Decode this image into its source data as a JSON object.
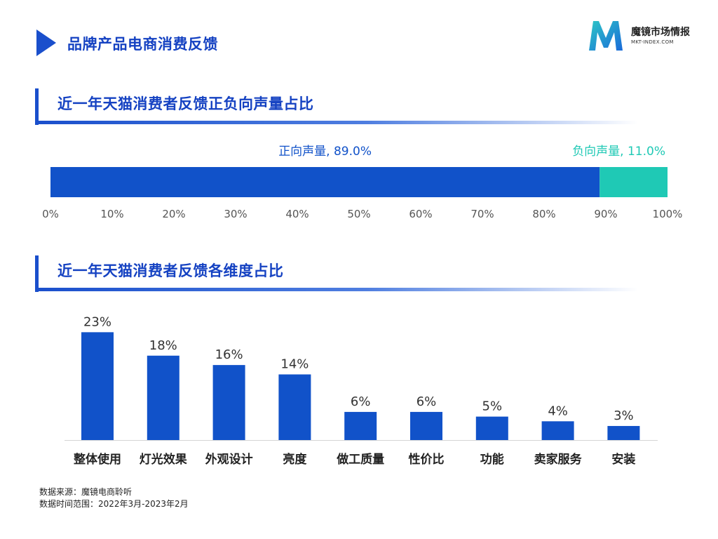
{
  "header": {
    "title": "品牌产品电商消费反馈",
    "logo": {
      "name": "魔镜市场情报",
      "sub": "MKT-INDEX.COM",
      "mark_letter": "M"
    }
  },
  "section1": {
    "title": "近一年天猫消费者反馈正负向声量占比"
  },
  "section2": {
    "title": "近一年天猫消费者反馈各维度占比"
  },
  "colors": {
    "primary": "#1a4fcc",
    "title": "#1542c2",
    "positive": "#1152c9",
    "negative": "#1fc9b5",
    "bar": "#1152c9",
    "axis_text": "#555555"
  },
  "chart_data": [
    {
      "type": "bar",
      "orientation": "horizontal",
      "stacked": true,
      "title": "近一年天猫消费者反馈正负向声量占比",
      "series": [
        {
          "name": "正向声量",
          "value": 89.0,
          "label": "正向声量, 89.0%"
        },
        {
          "name": "负向声量",
          "value": 11.0,
          "label": "负向声量, 11.0%"
        }
      ],
      "xlim": [
        0,
        100
      ],
      "xticks": [
        "0%",
        "10%",
        "20%",
        "30%",
        "40%",
        "50%",
        "60%",
        "70%",
        "80%",
        "90%",
        "100%"
      ]
    },
    {
      "type": "bar",
      "title": "近一年天猫消费者反馈各维度占比",
      "categories": [
        "整体使用",
        "灯光效果",
        "外观设计",
        "亮度",
        "做工质量",
        "性价比",
        "功能",
        "卖家服务",
        "安装"
      ],
      "values": [
        23,
        18,
        16,
        14,
        6,
        6,
        5,
        4,
        3
      ],
      "value_labels": [
        "23%",
        "18%",
        "16%",
        "14%",
        "6%",
        "6%",
        "5%",
        "4%",
        "3%"
      ],
      "ylim": [
        0,
        25
      ]
    }
  ],
  "footer": {
    "source": "数据来源：魔镜电商聆听",
    "period": "数据时间范围：2022年3月-2023年2月"
  }
}
